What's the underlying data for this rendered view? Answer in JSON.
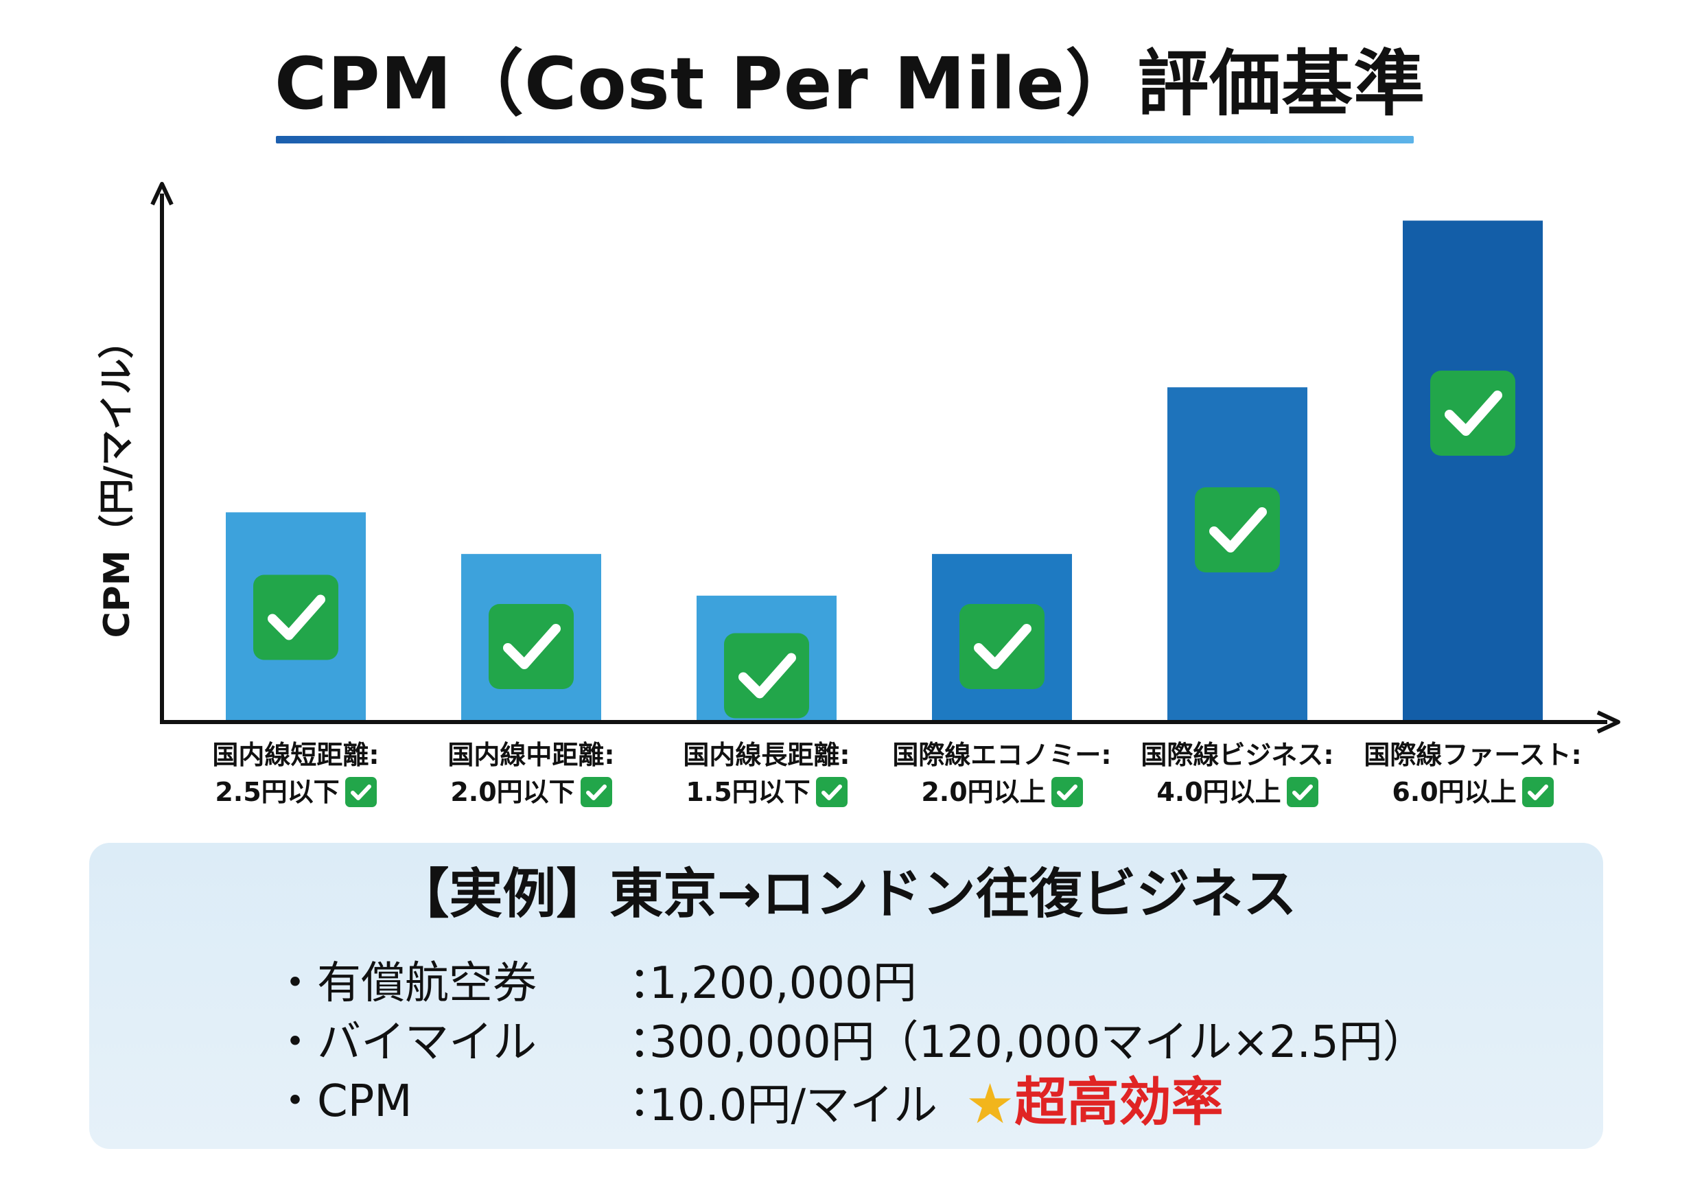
{
  "title": "CPM（Cost Per Mile）評価基準",
  "chart_data": {
    "type": "bar",
    "ylabel": "CPM（円/マイル）",
    "xlabel": "",
    "ylim": [
      0,
      7.0
    ],
    "categories": [
      {
        "name": "国内線短距離:",
        "criterion": "2.5円以下",
        "value": 2.5,
        "color": "#3da2dc"
      },
      {
        "name": "国内線中距離:",
        "criterion": "2.0円以下",
        "value": 2.0,
        "color": "#3da2dc"
      },
      {
        "name": "国内線長距離:",
        "criterion": "1.5円以下",
        "value": 1.5,
        "color": "#3da2dc"
      },
      {
        "name": "国際線エコノミー:",
        "criterion": "2.0円以上",
        "value": 2.0,
        "color": "#1e7ac2"
      },
      {
        "name": "国際線ビジネス:",
        "criterion": "4.0円以上",
        "value": 4.0,
        "color": "#1e73bb"
      },
      {
        "name": "国際線ファースト:",
        "criterion": "6.0円以上",
        "value": 6.0,
        "color": "#135ea8"
      }
    ],
    "check_icon": "check-icon",
    "check_color": "#22a64a"
  },
  "example": {
    "title": "【実例】東京→ロンドン往復ビジネス",
    "rows": [
      {
        "bullet": "・",
        "label": "有償航空券",
        "sep": "：",
        "value": "1,200,000円"
      },
      {
        "bullet": "・",
        "label": "バイマイル",
        "sep": "：",
        "value": "300,000円（120,000マイル×2.5円）"
      },
      {
        "bullet": "・",
        "label": "CPM",
        "sep": "：",
        "value": "10.0円/マイル"
      }
    ],
    "star_icon": "star-icon",
    "highlight": "超高効率"
  }
}
